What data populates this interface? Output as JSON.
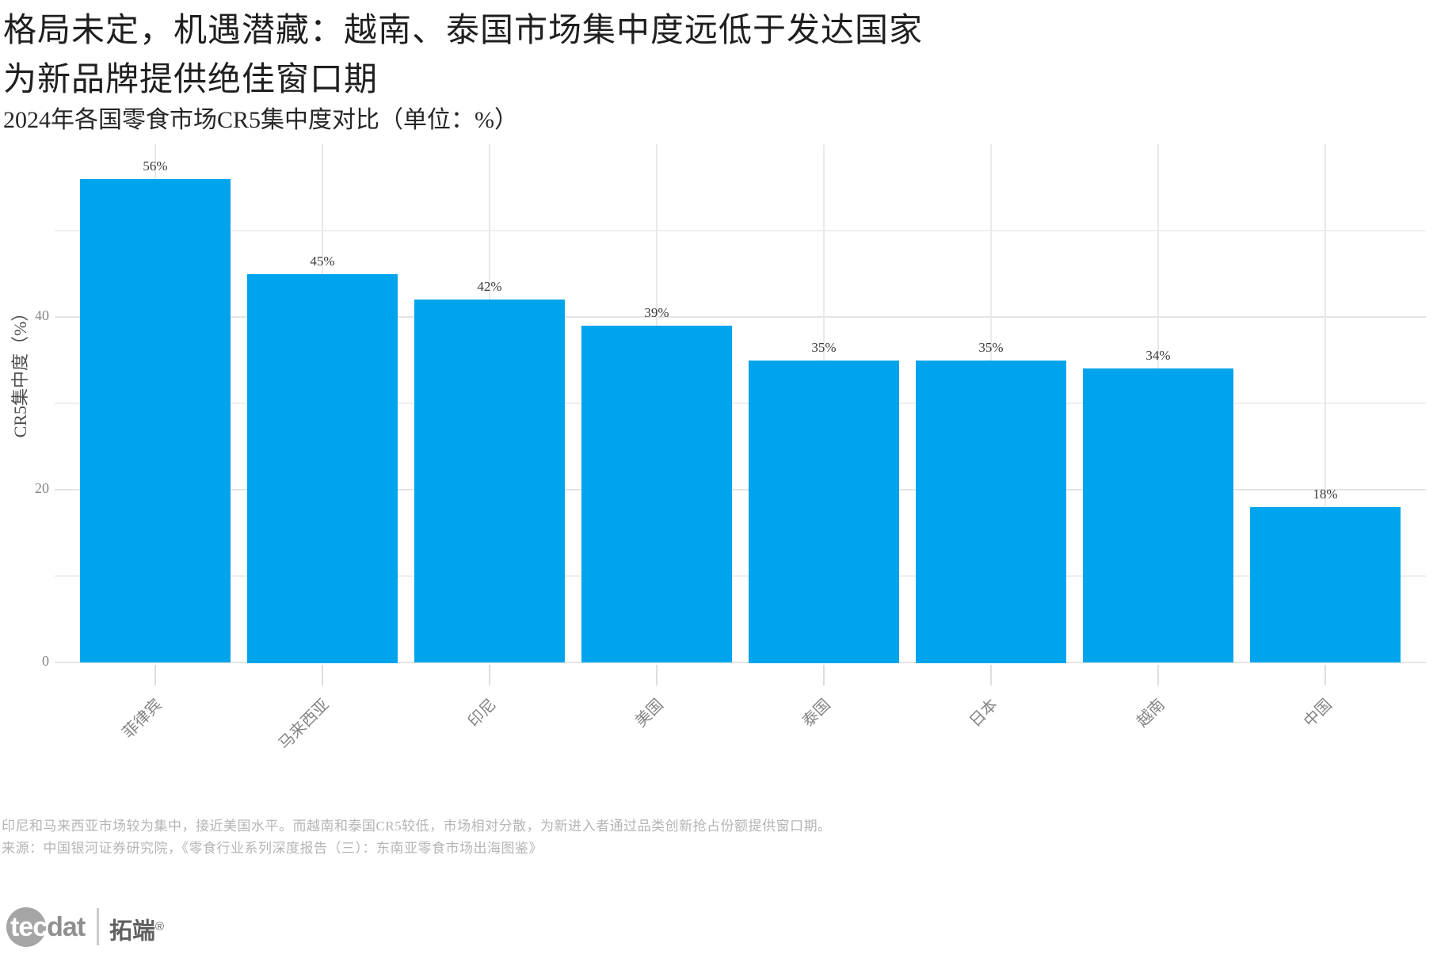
{
  "page": {
    "title_line1": "格局未定，机遇潜藏：越南、泰国市场集中度远低于发达国家",
    "title_line2": "为新品牌提供绝佳窗口期",
    "subtitle": "2024年各国零食市场CR5集中度对比（单位：%）"
  },
  "chart_data": {
    "type": "bar",
    "title": "2024年各国零食市场CR5集中度对比（单位：%）",
    "categories": [
      "菲律宾",
      "马来西亚",
      "印尼",
      "美国",
      "泰国",
      "日本",
      "越南",
      "中国"
    ],
    "values": [
      56,
      45,
      42,
      39,
      35,
      35,
      34,
      18
    ],
    "value_labels": [
      "56%",
      "45%",
      "42%",
      "39%",
      "35%",
      "35%",
      "34%",
      "18%"
    ],
    "xlabel": "",
    "ylabel": "CR5集中度（%）",
    "ylim": [
      0,
      60
    ],
    "yticks_major": [
      0,
      20,
      40
    ],
    "yticks_minor": [
      10,
      30,
      50
    ],
    "grid": "horizontal major+minor, vertical lines at category centers",
    "legend": "none",
    "bar_color": "#00A4EC"
  },
  "footnote": {
    "line1": "印尼和马来西亚市场较为集中，接近美国水平。而越南和泰国CR5较低，市场相对分散，为新进入者通过品类创新抢占份额提供窗口期。",
    "line2": "来源：中国银河证券研究院，《零食行业系列深度报告（三）：东南亚零食市场出海图鉴》"
  },
  "logo": {
    "word_highlight": "tec",
    "word_rest": "dat",
    "cn_name": "拓端",
    "registered": "®"
  }
}
